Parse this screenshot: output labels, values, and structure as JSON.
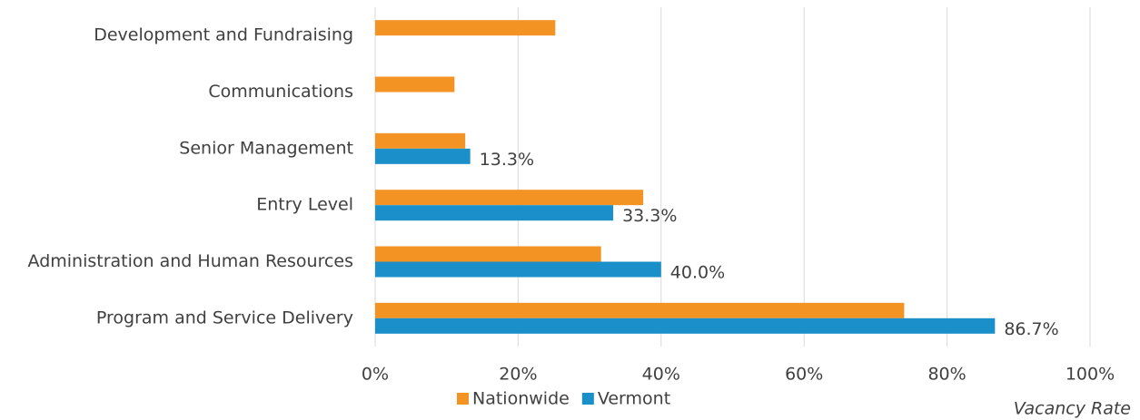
{
  "chart_data": {
    "type": "bar",
    "orientation": "horizontal",
    "categories": [
      "Development and Fundraising",
      "Communications",
      "Senior Management",
      "Entry Level",
      "Administration and Human Resources",
      "Program and Service Delivery"
    ],
    "series": [
      {
        "name": "Nationwide",
        "color": "#f39323",
        "values": [
          25.2,
          11.1,
          12.6,
          37.5,
          31.6,
          74.0
        ]
      },
      {
        "name": "Vermont",
        "color": "#1a8fc9",
        "values": [
          null,
          null,
          13.3,
          33.3,
          40.0,
          86.7
        ],
        "value_labels": [
          null,
          null,
          "13.3%",
          "33.3%",
          "40.0%",
          "86.7%"
        ]
      }
    ],
    "xlim": [
      0,
      100
    ],
    "xticks": [
      {
        "value": 0,
        "label": "0%"
      },
      {
        "value": 20,
        "label": "20%"
      },
      {
        "value": 40,
        "label": "40%"
      },
      {
        "value": 60,
        "label": "60%"
      },
      {
        "value": 80,
        "label": "80%"
      },
      {
        "value": 100,
        "label": "100%"
      }
    ],
    "xlabel": "Vacancy Rate",
    "grid": true,
    "legend": "bottom"
  }
}
